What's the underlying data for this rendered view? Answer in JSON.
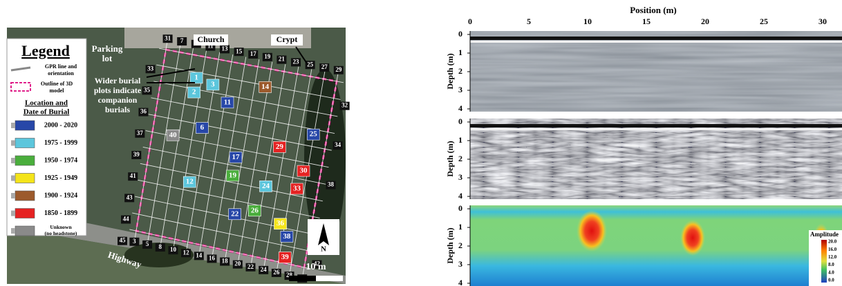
{
  "map": {
    "legend": {
      "title": "Legend",
      "gpr": [
        "GPR line and",
        "orientation"
      ],
      "outline": [
        "Outline of 3D",
        "model"
      ],
      "location": [
        "Location and",
        "Date of Burial"
      ],
      "items": [
        {
          "label": [
            "2000 - 2020"
          ],
          "color": "#2747a8"
        },
        {
          "label": [
            "1975 - 1999"
          ],
          "color": "#5cc6dc"
        },
        {
          "label": [
            "1950 - 1974"
          ],
          "color": "#4aae3c"
        },
        {
          "label": [
            "1925 - 1949"
          ],
          "color": "#f4e41a"
        },
        {
          "label": [
            "1900 - 1924"
          ],
          "color": "#9c5a2c"
        },
        {
          "label": [
            "1850 - 1899"
          ],
          "color": "#e52222"
        },
        {
          "label": [
            "Unknown",
            "(no headstone)"
          ],
          "color": "#8a8a8a"
        }
      ]
    },
    "labels": {
      "parking": [
        "Parking",
        "lot"
      ],
      "church": "Church",
      "crypt": "Crypt",
      "wider": [
        "Wider burial",
        "plots indicate",
        "companion",
        "burials"
      ],
      "highway": "Highway",
      "scale": "10 m",
      "north": "N"
    },
    "lines": {
      "top": [
        "31",
        "7",
        "9",
        "11",
        "13",
        "15",
        "17",
        "19",
        "21",
        "23",
        "25",
        "27",
        "29"
      ],
      "left": [
        "33",
        "35",
        "36",
        "37",
        "39",
        "41",
        "43",
        "44",
        "45"
      ],
      "bottom": [
        "3",
        "5",
        "8",
        "10",
        "12",
        "14",
        "16",
        "18",
        "20",
        "22",
        "24",
        "26",
        "28",
        "30"
      ],
      "right": [
        "32",
        "34",
        "38",
        "40",
        "42"
      ]
    },
    "plots": [
      {
        "label": "1",
        "cat": 1
      },
      {
        "label": "2",
        "cat": 1
      },
      {
        "label": "3",
        "cat": 1
      },
      {
        "label": "6",
        "cat": 0
      },
      {
        "label": "12",
        "cat": 1
      },
      {
        "label": "14",
        "cat": 4
      },
      {
        "label": "22",
        "cat": 0
      },
      {
        "label": "24",
        "cat": 1
      },
      {
        "label": "36",
        "cat": 3
      },
      {
        "label": "38",
        "cat": 0
      },
      {
        "label": "39",
        "cat": 5
      },
      {
        "label": "26",
        "cat": 2
      },
      {
        "label": "29",
        "cat": 5
      },
      {
        "label": "17",
        "cat": 0
      },
      {
        "label": "19",
        "cat": 2
      },
      {
        "label": "33",
        "cat": 5
      },
      {
        "label": "30",
        "cat": 5
      },
      {
        "label": "25",
        "cat": 0
      },
      {
        "label": "40",
        "cat": 6
      },
      {
        "label": "11",
        "cat": 0
      }
    ]
  },
  "profiles": {
    "xlabel": "Position (m)",
    "xticks": [
      "0",
      "5",
      "10",
      "15",
      "20",
      "25",
      "30"
    ],
    "ylabel": "Depth (m)",
    "yticks": [
      "0",
      "1",
      "2",
      "3",
      "4"
    ],
    "colorbar": {
      "title": "Amplitude",
      "ticks": [
        "20.0",
        "16.0",
        "12.0",
        "8.0",
        "4.0",
        "0.0"
      ]
    }
  }
}
